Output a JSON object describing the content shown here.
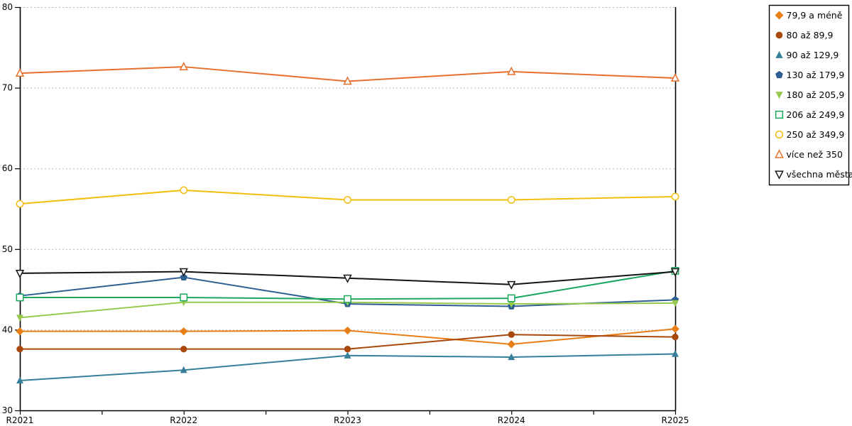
{
  "chart_data": {
    "type": "line",
    "title": "",
    "xlabel": "",
    "ylabel": "",
    "categories": [
      "R2021",
      "R2022",
      "R2023",
      "R2024",
      "R2025"
    ],
    "ylim": [
      30,
      80
    ],
    "yticks": [
      30,
      40,
      50,
      60,
      70,
      80
    ],
    "grid": "horizontal-dotted",
    "legend_position": "top-right-outside",
    "series": [
      {
        "name": "79,9 a méně",
        "marker": "diamond",
        "filled": true,
        "color": "#E87E16",
        "values": [
          39.8,
          39.8,
          39.9,
          38.2,
          40.1
        ]
      },
      {
        "name": "80 až 89,9",
        "marker": "circle",
        "filled": true,
        "color": "#A8480C",
        "values": [
          37.6,
          37.6,
          37.6,
          39.4,
          39.1
        ]
      },
      {
        "name": "90 až 129,9",
        "marker": "triangle-up",
        "filled": true,
        "color": "#357F9B",
        "values": [
          33.7,
          35.0,
          36.8,
          36.6,
          37.0
        ]
      },
      {
        "name": "130 až 179,9",
        "marker": "pentagon",
        "filled": true,
        "color": "#2D5E91",
        "values": [
          44.2,
          46.5,
          43.2,
          42.9,
          43.7
        ]
      },
      {
        "name": "180 až 205,9",
        "marker": "triangle-down",
        "filled": true,
        "color": "#97C94F",
        "values": [
          41.5,
          43.4,
          43.4,
          43.2,
          43.3
        ]
      },
      {
        "name": "206 až 249,9",
        "marker": "square",
        "filled": false,
        "color": "#1BA75C",
        "values": [
          44.0,
          44.0,
          43.8,
          43.9,
          47.3
        ]
      },
      {
        "name": "250 až 349,9",
        "marker": "circle",
        "filled": false,
        "color": "#F2BE0F",
        "values": [
          55.6,
          57.3,
          56.1,
          56.1,
          56.5
        ]
      },
      {
        "name": "více než 350",
        "marker": "triangle-up",
        "filled": false,
        "color": "#E8702D",
        "values": [
          71.8,
          72.6,
          70.8,
          72.0,
          71.2
        ]
      },
      {
        "name": "všechna města",
        "marker": "triangle-down",
        "filled": false,
        "color": "#141414",
        "values": [
          47.0,
          47.2,
          46.4,
          45.6,
          47.2
        ]
      }
    ],
    "colors": {
      "gridline": "#b3b3b3",
      "axis": "#000000",
      "background": "#ffffff",
      "legend_border": "#000000"
    }
  }
}
